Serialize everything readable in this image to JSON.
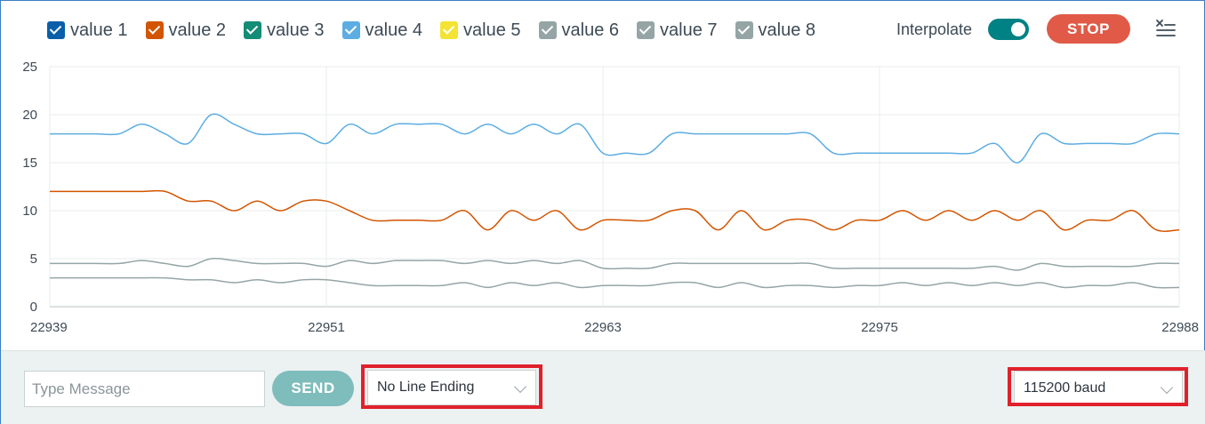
{
  "legend": {
    "items": [
      {
        "label": "value 1",
        "color": "#0b5fa8"
      },
      {
        "label": "value 2",
        "color": "#d35400"
      },
      {
        "label": "value 3",
        "color": "#138d75"
      },
      {
        "label": "value 4",
        "color": "#5dade2"
      },
      {
        "label": "value 5",
        "color": "#f4e333"
      },
      {
        "label": "value 6",
        "color": "#95a5a6"
      },
      {
        "label": "value 7",
        "color": "#95a5a6"
      },
      {
        "label": "value 8",
        "color": "#95a5a6"
      }
    ]
  },
  "toolbar": {
    "interpolate_label": "Interpolate",
    "interpolate_on": true,
    "stop_label": "STOP",
    "clear_icon": "clear-lines-icon"
  },
  "chart_data": {
    "type": "line",
    "ylim": [
      0,
      25
    ],
    "yticks": [
      0,
      5,
      10,
      15,
      20,
      25
    ],
    "xlim": [
      22939,
      22988
    ],
    "xticks": [
      22939,
      22951,
      22963,
      22975,
      22988
    ],
    "grid": true,
    "series": [
      {
        "name": "value 4",
        "color": "#5dade2",
        "x": [
          22939,
          22940,
          22941,
          22942,
          22943,
          22944,
          22945,
          22946,
          22947,
          22948,
          22949,
          22950,
          22951,
          22952,
          22953,
          22954,
          22955,
          22956,
          22957,
          22958,
          22959,
          22960,
          22961,
          22962,
          22963,
          22964,
          22965,
          22966,
          22967,
          22968,
          22969,
          22970,
          22971,
          22972,
          22973,
          22974,
          22975,
          22976,
          22977,
          22978,
          22979,
          22980,
          22981,
          22982,
          22983,
          22984,
          22985,
          22986,
          22987,
          22988
        ],
        "values": [
          18,
          18,
          18,
          18,
          19,
          18,
          17,
          20,
          19,
          18,
          18,
          18,
          17,
          19,
          18,
          19,
          19,
          19,
          18,
          19,
          18,
          19,
          18,
          19,
          16,
          16,
          16,
          18,
          18,
          18,
          18,
          18,
          18,
          18,
          16,
          16,
          16,
          16,
          16,
          16,
          16,
          17,
          15,
          18,
          17,
          17,
          17,
          17,
          18,
          18
        ]
      },
      {
        "name": "value 2",
        "color": "#d35400",
        "x": [
          22939,
          22940,
          22941,
          22942,
          22943,
          22944,
          22945,
          22946,
          22947,
          22948,
          22949,
          22950,
          22951,
          22952,
          22953,
          22954,
          22955,
          22956,
          22957,
          22958,
          22959,
          22960,
          22961,
          22962,
          22963,
          22964,
          22965,
          22966,
          22967,
          22968,
          22969,
          22970,
          22971,
          22972,
          22973,
          22974,
          22975,
          22976,
          22977,
          22978,
          22979,
          22980,
          22981,
          22982,
          22983,
          22984,
          22985,
          22986,
          22987,
          22988
        ],
        "values": [
          12,
          12,
          12,
          12,
          12,
          12,
          11,
          11,
          10,
          11,
          10,
          11,
          11,
          10,
          9,
          9,
          9,
          9,
          10,
          8,
          10,
          9,
          10,
          8,
          9,
          9,
          9,
          10,
          10,
          8,
          10,
          8,
          9,
          9,
          8,
          9,
          9,
          10,
          9,
          10,
          9,
          10,
          9,
          10,
          8,
          9,
          9,
          10,
          8,
          8
        ]
      },
      {
        "name": "value 6",
        "color": "#95a5a6",
        "x": [
          22939,
          22940,
          22941,
          22942,
          22943,
          22944,
          22945,
          22946,
          22947,
          22948,
          22949,
          22950,
          22951,
          22952,
          22953,
          22954,
          22955,
          22956,
          22957,
          22958,
          22959,
          22960,
          22961,
          22962,
          22963,
          22964,
          22965,
          22966,
          22967,
          22968,
          22969,
          22970,
          22971,
          22972,
          22973,
          22974,
          22975,
          22976,
          22977,
          22978,
          22979,
          22980,
          22981,
          22982,
          22983,
          22984,
          22985,
          22986,
          22987,
          22988
        ],
        "values": [
          4.5,
          4.5,
          4.5,
          4.5,
          4.8,
          4.5,
          4.2,
          5,
          4.8,
          4.5,
          4.5,
          4.5,
          4.2,
          4.8,
          4.5,
          4.8,
          4.8,
          4.8,
          4.5,
          4.8,
          4.5,
          4.8,
          4.5,
          4.8,
          4,
          4,
          4,
          4.5,
          4.5,
          4.5,
          4.5,
          4.5,
          4.5,
          4.5,
          4,
          4,
          4,
          4,
          4,
          4,
          4,
          4.2,
          3.8,
          4.5,
          4.2,
          4.2,
          4.2,
          4.2,
          4.5,
          4.5
        ]
      },
      {
        "name": "value 7",
        "color": "#95a5a6",
        "x": [
          22939,
          22940,
          22941,
          22942,
          22943,
          22944,
          22945,
          22946,
          22947,
          22948,
          22949,
          22950,
          22951,
          22952,
          22953,
          22954,
          22955,
          22956,
          22957,
          22958,
          22959,
          22960,
          22961,
          22962,
          22963,
          22964,
          22965,
          22966,
          22967,
          22968,
          22969,
          22970,
          22971,
          22972,
          22973,
          22974,
          22975,
          22976,
          22977,
          22978,
          22979,
          22980,
          22981,
          22982,
          22983,
          22984,
          22985,
          22986,
          22987,
          22988
        ],
        "values": [
          3,
          3,
          3,
          3,
          3,
          3,
          2.8,
          2.8,
          2.5,
          2.8,
          2.5,
          2.8,
          2.8,
          2.5,
          2.2,
          2.2,
          2.2,
          2.2,
          2.5,
          2,
          2.5,
          2.2,
          2.5,
          2,
          2.2,
          2.2,
          2.2,
          2.5,
          2.5,
          2,
          2.5,
          2,
          2.2,
          2.2,
          2,
          2.2,
          2.2,
          2.5,
          2.2,
          2.5,
          2.2,
          2.5,
          2.2,
          2.5,
          2,
          2.2,
          2.2,
          2.5,
          2,
          2
        ]
      }
    ]
  },
  "footer": {
    "message_placeholder": "Type Message",
    "send_label": "SEND",
    "line_ending": "No Line Ending",
    "baud": "115200 baud"
  }
}
